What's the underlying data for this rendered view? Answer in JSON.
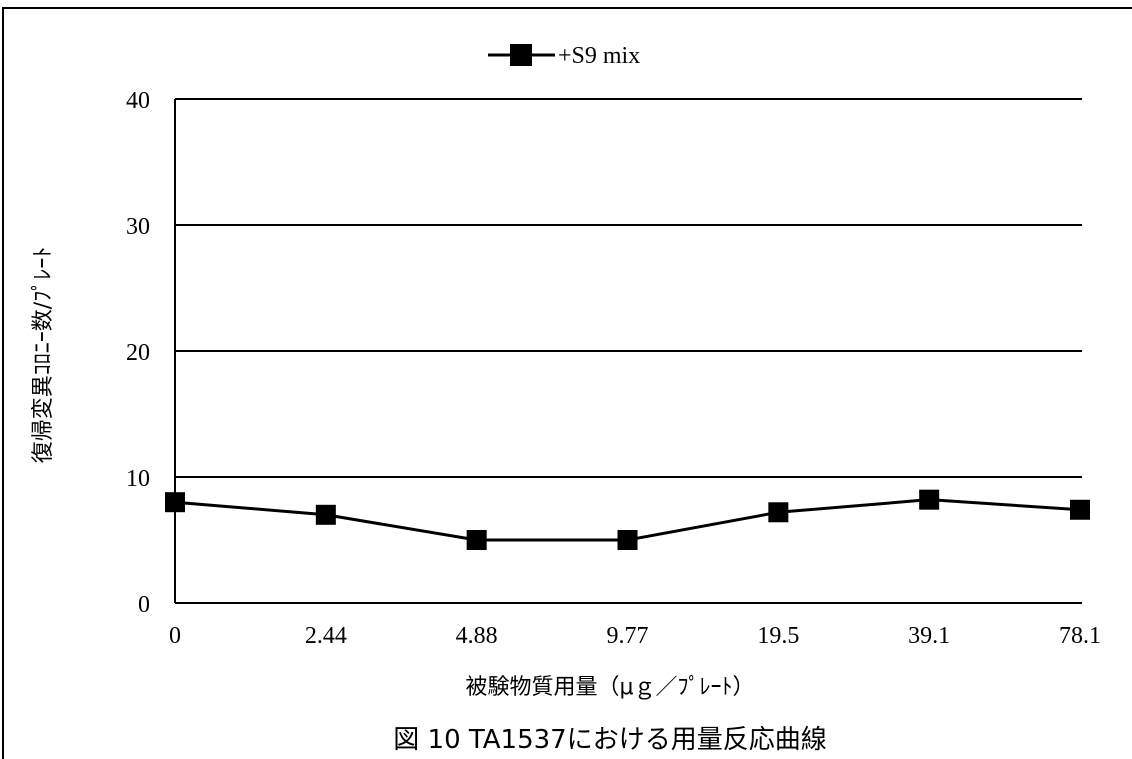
{
  "chart_data": {
    "type": "line",
    "categories": [
      "0",
      "2.44",
      "4.88",
      "9.77",
      "19.5",
      "39.1",
      "78.1"
    ],
    "series": [
      {
        "name": "+S9 mix",
        "values": [
          8.0,
          7.0,
          5.0,
          5.0,
          7.2,
          8.2,
          7.4
        ],
        "marker": "square",
        "color": "#000000"
      }
    ],
    "ylim": [
      0,
      40
    ],
    "yticks": [
      "0",
      "10",
      "20",
      "30",
      "40"
    ],
    "xlabel": "被験物質用量（μｇ／ﾌﾟﾚｰﾄ）",
    "ylabel": "復帰変異ｺﾛﾆｰ数/ﾌﾟﾚｰﾄ",
    "caption": "図 10 TA1537における用量反応曲線",
    "grid": true,
    "legend_position": "top-center"
  }
}
